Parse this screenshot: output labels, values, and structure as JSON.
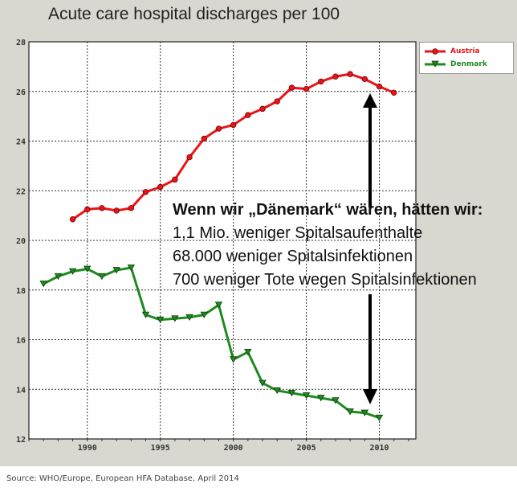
{
  "colors": {
    "austria": "#e8141a",
    "denmark": "#1f8a1f",
    "background": "#d8d8d0",
    "grid": "#333333"
  },
  "chart_data": {
    "type": "line",
    "title": "Acute care hospital discharges per 100",
    "xlabel": "",
    "ylabel": "",
    "xlim": [
      1986,
      2012.5
    ],
    "ylim": [
      12,
      28
    ],
    "xticks": [
      1990,
      1995,
      2000,
      2005,
      2010
    ],
    "yticks": [
      12,
      14,
      16,
      18,
      20,
      22,
      24,
      26,
      28
    ],
    "grid": true,
    "legend_position": "top-right",
    "series": [
      {
        "name": "Austria",
        "color": "#e8141a",
        "marker": "circle",
        "x": [
          1989,
          1990,
          1991,
          1992,
          1993,
          1994,
          1995,
          1996,
          1997,
          1998,
          1999,
          2000,
          2001,
          2002,
          2003,
          2004,
          2005,
          2006,
          2007,
          2008,
          2009,
          2010,
          2011
        ],
        "y": [
          20.85,
          21.25,
          21.3,
          21.2,
          21.3,
          21.95,
          22.15,
          22.45,
          23.35,
          24.1,
          24.5,
          24.65,
          25.05,
          25.3,
          25.6,
          26.15,
          26.1,
          26.4,
          26.6,
          26.7,
          26.5,
          26.2,
          25.95
        ]
      },
      {
        "name": "Denmark",
        "color": "#1f8a1f",
        "marker": "triangle-down",
        "x": [
          1987,
          1988,
          1989,
          1990,
          1991,
          1992,
          1993,
          1994,
          1995,
          1996,
          1997,
          1998,
          1999,
          2000,
          2001,
          2002,
          2003,
          2004,
          2005,
          2006,
          2007,
          2008,
          2009,
          2010
        ],
        "y": [
          18.25,
          18.55,
          18.75,
          18.85,
          18.55,
          18.8,
          18.9,
          17,
          16.8,
          16.85,
          16.9,
          17,
          17.4,
          15.2,
          15.5,
          14.25,
          13.95,
          13.85,
          13.75,
          13.65,
          13.55,
          13.1,
          13.05,
          12.85
        ]
      }
    ]
  },
  "annotation": {
    "heading": "Wenn wir „Dänemark“ wären, hätten wir:",
    "lines": [
      "1,1 Mio. weniger Spitalsaufenthalte",
      "68.000 weniger Spitalsinfektionen",
      "700 weniger Tote wegen Spitalsinfektionen"
    ]
  },
  "source": "Source: WHO/Europe, European HFA Database, April 2014"
}
